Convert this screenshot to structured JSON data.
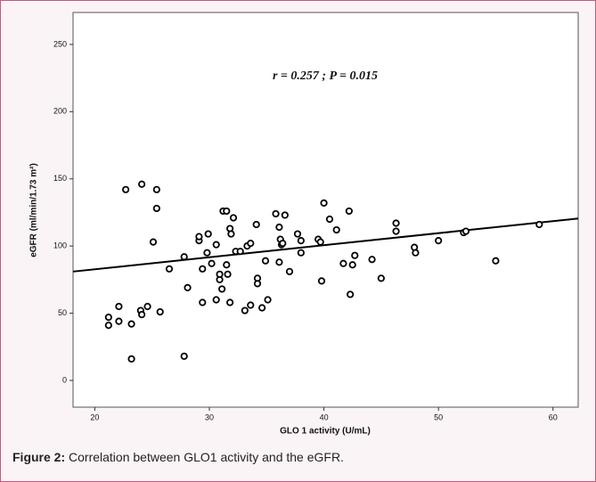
{
  "chart_data": {
    "type": "scatter",
    "annotation": "r = 0.257 ; P = 0.015",
    "x_label": "GLO 1 activity (U/mL)",
    "y_label": "eGFR (ml/min/1.73 m²)",
    "xlim": [
      18.1,
      62.2
    ],
    "ylim": [
      -19.9,
      273.8
    ],
    "xticks": [
      20,
      30,
      40,
      50,
      60
    ],
    "yticks": [
      0,
      50,
      100,
      150,
      200,
      250
    ],
    "color": "#000000",
    "series": [
      {
        "x": [
          21.2,
          21.2,
          22.1,
          22.1,
          22.7,
          23.2,
          23.2,
          24.0,
          24.1,
          24.1,
          24.6,
          25.1,
          25.4,
          25.4,
          25.7,
          26.5,
          27.8,
          27.8,
          28.1,
          29.1,
          29.1,
          29.4,
          29.4,
          29.9,
          29.8,
          30.2,
          30.6,
          30.6,
          30.9,
          30.9,
          31.1,
          31.2,
          31.5,
          31.5,
          31.6,
          31.8,
          31.8,
          31.9,
          32.1,
          32.3,
          32.7,
          33.1,
          33.3,
          33.6,
          33.6,
          34.1,
          34.2,
          34.2,
          34.6,
          34.9,
          35.1,
          35.8,
          36.1,
          36.1,
          36.2,
          36.3,
          36.4,
          36.6,
          37.0,
          37.7,
          38.0,
          38.0,
          39.5,
          39.7,
          39.8,
          40.0,
          40.5,
          41.1,
          41.7,
          42.2,
          42.3,
          42.5,
          42.7,
          44.2,
          45.0,
          46.3,
          46.3,
          47.9,
          48.0,
          50.0,
          52.2,
          52.4,
          55.0,
          58.8
        ],
        "values": [
          47,
          41,
          55,
          44,
          142,
          42,
          16,
          52,
          49,
          146,
          55,
          103,
          142,
          128,
          51,
          83,
          92,
          18,
          69,
          104,
          107,
          83,
          58,
          109,
          95,
          87,
          101,
          60,
          75,
          79,
          68,
          126,
          126,
          86,
          79,
          58,
          113,
          109,
          121,
          96,
          96,
          52,
          100,
          56,
          102,
          116,
          76,
          72,
          54,
          89,
          60,
          124,
          114,
          88,
          105,
          101,
          102,
          123,
          81,
          109,
          104,
          95,
          105,
          103,
          74,
          132,
          120,
          112,
          87,
          126,
          64,
          86,
          93,
          90,
          76,
          117,
          111,
          99,
          95,
          104,
          110,
          111,
          89,
          116
        ]
      }
    ],
    "fit_line": {
      "x": [
        18.1,
        62.2
      ],
      "y": [
        81,
        120.5
      ]
    }
  },
  "caption": {
    "label": "Figure 2:",
    "text": "Correlation between GLO1 activity and the eGFR."
  }
}
